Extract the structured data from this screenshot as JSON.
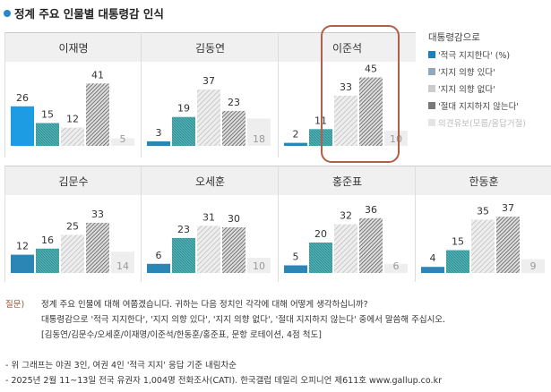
{
  "title": "정계 주요 인물별 대통령감 인식",
  "legend": {
    "heading": "대통령감으로",
    "items": [
      "'적극 지지한다' (%)",
      "'지지 의향 있다'",
      "'지지 의향 없다'",
      "'절대 지지하지 않는다'",
      "의견유보(모름/응답거절)"
    ]
  },
  "colors": {
    "strong": "#1d9be3",
    "some": "#4fb0b4",
    "no": "#c8c8c8",
    "never": "#555555",
    "dk": "#eeeeee",
    "highlight": "#b0604a"
  },
  "chart_data": {
    "type": "bar",
    "ylim": [
      0,
      50
    ],
    "legend_position": "right",
    "series_names": [
      "'적극 지지한다'",
      "'지지 의향 있다'",
      "'지지 의향 없다'",
      "'절대 지지하지 않는다'",
      "의견유보(모름/응답거절)"
    ],
    "panels": [
      {
        "name": "이재명",
        "values": [
          26,
          15,
          12,
          41,
          5
        ]
      },
      {
        "name": "김동연",
        "values": [
          3,
          19,
          37,
          23,
          18
        ]
      },
      {
        "name": "이준석",
        "values": [
          2,
          11,
          33,
          45,
          10
        ],
        "highlighted": true
      },
      {
        "name": "김문수",
        "values": [
          12,
          16,
          25,
          33,
          14
        ]
      },
      {
        "name": "오세훈",
        "values": [
          6,
          23,
          31,
          30,
          10
        ]
      },
      {
        "name": "홍준표",
        "values": [
          5,
          20,
          32,
          36,
          6
        ]
      },
      {
        "name": "한동훈",
        "values": [
          4,
          15,
          35,
          37,
          9
        ]
      }
    ]
  },
  "notes": {
    "q_label": "질문)",
    "q_lines": [
      "정계 주요 인물에 대해 여쭙겠습니다. 귀하는 다음 정치인 각각에 대해 어떻게 생각하십니까?",
      "대통령감으로 '적극 지지한다', '지지 의향 있다', '지지 의향 없다', '절대 지지하지 않는다' 중에서 말씀해 주십시오.",
      "[김동연/김문수/오세훈/이재명/이준석/한동훈/홍준표, 문항 로테이션, 4점 척도]"
    ],
    "footnotes": [
      "- 위 그래프는 야권 3인, 여권 4인 '적극 지지' 응답 기준 내림차순",
      "- 2025년 2월 11~13일 전국 유권자 1,004명 전화조사(CATI). 한국갤럽 데일리 오피니언 제611호 www.gallup.co.kr"
    ]
  }
}
